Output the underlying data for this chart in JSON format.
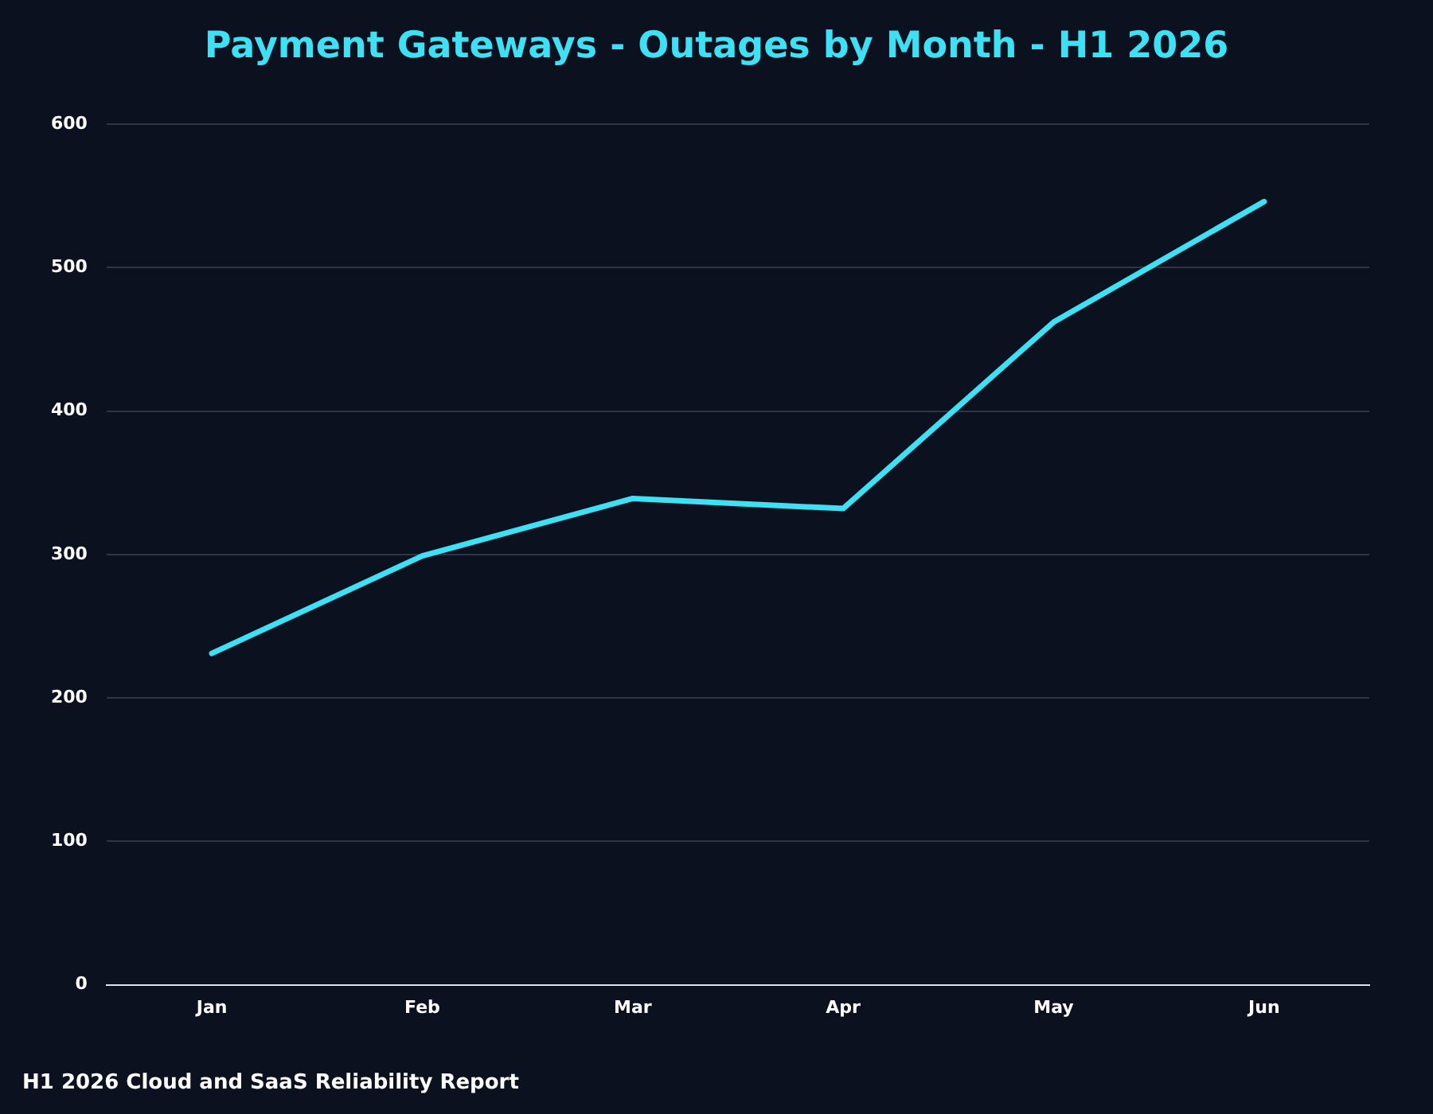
{
  "chart_data": {
    "type": "line",
    "title": "Payment Gateways - Outages by Month - H1 2026",
    "annotations": [
      "H1 2026 Cloud and SaaS Reliability Report"
    ],
    "categories": [
      "Jan",
      "Feb",
      "Mar",
      "Apr",
      "May",
      "Jun"
    ],
    "series": [
      {
        "color": "#3ee0f4",
        "values": [
          231,
          299,
          339,
          332,
          462,
          546
        ]
      }
    ],
    "ylim": [
      0,
      600
    ],
    "yticks": [
      0,
      100,
      200,
      300,
      400,
      500,
      600
    ],
    "grid": "y",
    "legend": false,
    "marker": "none",
    "line_style": "solid"
  }
}
